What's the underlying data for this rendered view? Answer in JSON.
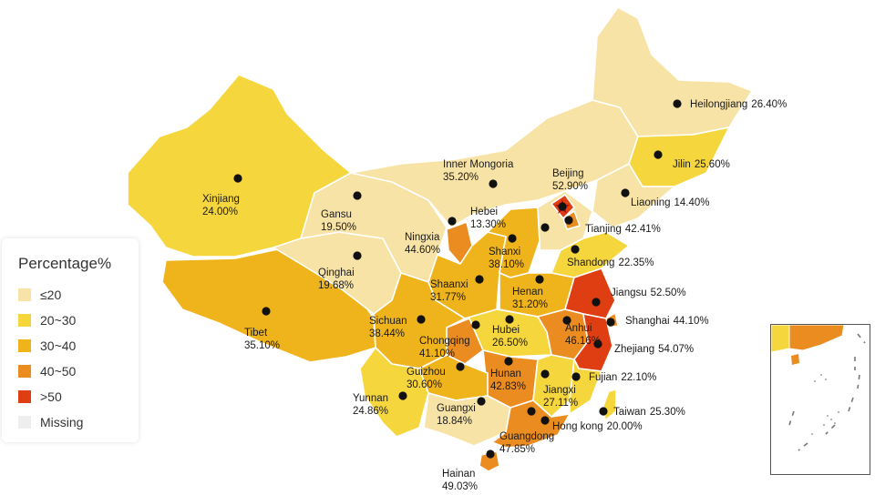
{
  "legend": {
    "title": "Percentage%",
    "items": [
      {
        "label": "≤20",
        "color": "#f8e3a6"
      },
      {
        "label": "20~30",
        "color": "#f5d63d"
      },
      {
        "label": "30~40",
        "color": "#efb41c"
      },
      {
        "label": "40~50",
        "color": "#ea8c1f"
      },
      {
        "label": ">50",
        "color": "#df3d12"
      },
      {
        "label": "Missing",
        "color": "#eeeeee"
      }
    ]
  },
  "regions": [
    {
      "name": "Heilongjiang",
      "value": "26.40%"
    },
    {
      "name": "Jilin",
      "value": "25.60%"
    },
    {
      "name": "Liaoning",
      "value": "14.40%"
    },
    {
      "name": "Inner Mongoria",
      "value": "35.20%"
    },
    {
      "name": "Beijing",
      "value": "52.90%"
    },
    {
      "name": "Tianjing",
      "value": "42.41%"
    },
    {
      "name": "Hebei",
      "value": "13.30%"
    },
    {
      "name": "Shandong",
      "value": "22.35%"
    },
    {
      "name": "Shanxi",
      "value": "38.10%"
    },
    {
      "name": "Xinjiang",
      "value": "24.00%"
    },
    {
      "name": "Gansu",
      "value": "19.50%"
    },
    {
      "name": "Ningxia",
      "value": "44.60%"
    },
    {
      "name": "Qinghai",
      "value": "19.68%"
    },
    {
      "name": "Shaanxi",
      "value": "31.77%"
    },
    {
      "name": "Henan",
      "value": "31.20%"
    },
    {
      "name": "Jiangsu",
      "value": "52.50%"
    },
    {
      "name": "Shanghai",
      "value": "44.10%"
    },
    {
      "name": "Zhejiang",
      "value": "54.07%"
    },
    {
      "name": "Anhui",
      "value": "46.16%"
    },
    {
      "name": "Hubei",
      "value": "26.50%"
    },
    {
      "name": "Tibet",
      "value": "35.10%"
    },
    {
      "name": "Sichuan",
      "value": "38.44%"
    },
    {
      "name": "Chongqing",
      "value": "41.10%"
    },
    {
      "name": "Guizhou",
      "value": "30.60%"
    },
    {
      "name": "Hunan",
      "value": "42.83%"
    },
    {
      "name": "Jiangxi",
      "value": "27.11%"
    },
    {
      "name": "Fujian",
      "value": "22.10%"
    },
    {
      "name": "Taiwan",
      "value": "25.30%"
    },
    {
      "name": "Hong kong",
      "value": "20.00%"
    },
    {
      "name": "Guangdong",
      "value": "47.85%"
    },
    {
      "name": "Guangxi",
      "value": "18.84%"
    },
    {
      "name": "Yunnan",
      "value": "24.86%"
    },
    {
      "name": "Hainan",
      "value": "49.03%"
    }
  ]
}
